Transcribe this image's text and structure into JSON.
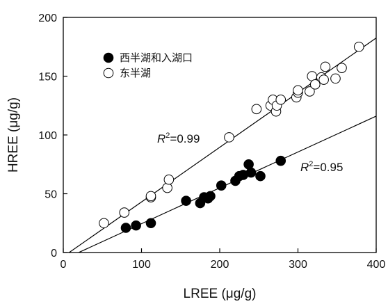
{
  "chart_data": {
    "type": "scatter",
    "xlabel": "LREE (μg/g)",
    "ylabel": "HREE (μg/g)",
    "xlim": [
      0,
      400
    ],
    "ylim": [
      0,
      200
    ],
    "x_ticks": [
      0,
      100,
      200,
      300,
      400
    ],
    "y_ticks": [
      0,
      50,
      100,
      150,
      200
    ],
    "grid": false,
    "legend_position": "top-left",
    "series": [
      {
        "name": "西半湖和入湖口",
        "marker": "filled-circle",
        "color": "#000000",
        "points": [
          [
            80,
            21
          ],
          [
            93,
            23
          ],
          [
            112,
            25
          ],
          [
            157,
            44
          ],
          [
            175,
            42
          ],
          [
            180,
            47
          ],
          [
            185,
            46
          ],
          [
            188,
            48
          ],
          [
            202,
            57
          ],
          [
            220,
            61
          ],
          [
            225,
            65
          ],
          [
            230,
            66
          ],
          [
            237,
            75
          ],
          [
            240,
            68
          ],
          [
            252,
            65
          ],
          [
            278,
            78
          ]
        ],
        "fit": {
          "slope": 0.305,
          "intercept": -6,
          "x_range": [
            20,
            400
          ],
          "r2_label": "=0.95"
        }
      },
      {
        "name": "东半湖",
        "marker": "open-circle",
        "color": "#ffffff",
        "points": [
          [
            52,
            25
          ],
          [
            78,
            34
          ],
          [
            112,
            47
          ],
          [
            112,
            48
          ],
          [
            133,
            55
          ],
          [
            135,
            62
          ],
          [
            212,
            98
          ],
          [
            247,
            122
          ],
          [
            265,
            125
          ],
          [
            268,
            130
          ],
          [
            272,
            120
          ],
          [
            273,
            125
          ],
          [
            278,
            130
          ],
          [
            298,
            132
          ],
          [
            300,
            136
          ],
          [
            300,
            138
          ],
          [
            315,
            137
          ],
          [
            318,
            150
          ],
          [
            322,
            143
          ],
          [
            330,
            149
          ],
          [
            333,
            147
          ],
          [
            335,
            158
          ],
          [
            348,
            148
          ],
          [
            356,
            157
          ],
          [
            378,
            175
          ]
        ],
        "fit": {
          "slope": 0.465,
          "intercept": -3.5,
          "x_range": [
            7,
            400
          ],
          "r2_label": "=0.99"
        }
      }
    ]
  }
}
